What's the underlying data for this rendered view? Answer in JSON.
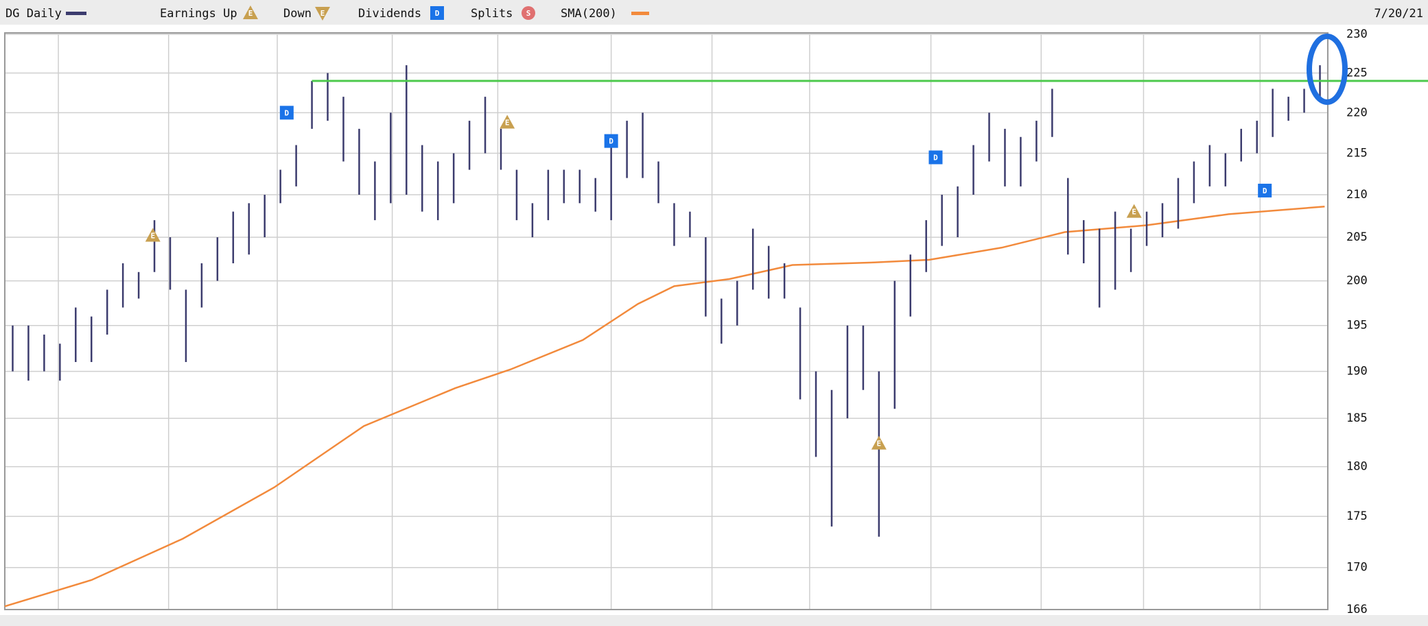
{
  "chart_data": {
    "type": "ohlc",
    "title": "DG Daily",
    "date_label": "7/20/21",
    "log_scale": true,
    "grid": true,
    "xlim": [
      0,
      84
    ],
    "xticks": [
      3.4,
      10.4,
      17.3,
      24.6,
      31.3,
      38.5,
      44.9,
      51.1,
      58.8,
      65.8,
      72.3,
      79.7
    ],
    "ylim": [
      166,
      230
    ],
    "yticks": [
      166,
      170,
      175,
      180,
      185,
      190,
      195,
      200,
      205,
      210,
      215,
      220,
      225,
      230
    ],
    "series": [
      {
        "name": "DG Daily",
        "color": "#3c3c6e",
        "high": [
          195,
          195,
          194,
          193,
          197,
          196,
          199,
          202,
          201,
          207,
          205,
          199,
          202,
          205,
          208,
          209,
          210,
          213,
          216,
          224,
          225,
          222,
          218,
          214,
          220,
          226,
          216,
          214,
          215,
          219,
          222,
          218,
          213,
          209,
          213,
          213,
          213,
          212,
          217,
          219,
          220,
          214,
          209,
          208,
          205,
          198,
          200,
          206,
          204,
          202,
          197,
          190,
          188,
          195,
          195,
          190,
          200,
          203,
          207,
          210,
          211,
          216,
          220,
          218,
          217,
          219,
          223,
          212,
          207,
          206,
          208,
          206,
          208,
          209,
          212,
          214,
          216,
          215,
          218,
          219,
          223,
          222,
          223,
          226
        ],
        "low": [
          190,
          189,
          190,
          189,
          191,
          191,
          194,
          197,
          198,
          201,
          199,
          191,
          197,
          200,
          202,
          203,
          205,
          209,
          211,
          218,
          219,
          214,
          210,
          207,
          209,
          210,
          208,
          207,
          209,
          213,
          215,
          213,
          207,
          205,
          207,
          209,
          209,
          208,
          207,
          212,
          212,
          209,
          204,
          205,
          196,
          193,
          195,
          199,
          198,
          198,
          187,
          181,
          174,
          185,
          188,
          173,
          186,
          196,
          201,
          204,
          205,
          210,
          214,
          211,
          211,
          214,
          217,
          203,
          202,
          197,
          199,
          201,
          204,
          205,
          206,
          209,
          211,
          211,
          214,
          215,
          217,
          219,
          220,
          222
        ]
      },
      {
        "name": "SMA(200)",
        "color": "#f28a3c",
        "x": [
          0,
          5.5,
          11.3,
          17.1,
          22.8,
          28.6,
          32.1,
          36.7,
          40.2,
          42.5,
          46,
          50,
          55.2,
          58.7,
          63.3,
          67.3,
          72.5,
          77.7,
          83.8
        ],
        "values": [
          166.3,
          168.8,
          172.8,
          177.9,
          184.2,
          188.2,
          190.2,
          193.4,
          197.4,
          199.4,
          200.2,
          201.8,
          202.1,
          202.4,
          203.8,
          205.6,
          206.4,
          207.7,
          208.6
        ]
      }
    ],
    "events": [
      {
        "name": "Earnings Up",
        "shape": "up",
        "color": "#c8a050",
        "icon": "E",
        "x": [
          9.4,
          31.9,
          55.5,
          71.7
        ],
        "y": [
          205.2,
          218.8,
          182.4,
          208
        ]
      },
      {
        "name": "Down",
        "shape": "down",
        "color": "#c8a050",
        "icon": "E",
        "x": [],
        "y": []
      },
      {
        "name": "Dividends",
        "shape": "square",
        "color": "#1a73e8",
        "icon": "D",
        "x": [
          17.9,
          38.5,
          59.1,
          80
        ],
        "y": [
          220,
          216.5,
          214.5,
          210.5
        ]
      },
      {
        "name": "Splits",
        "shape": "circle",
        "color": "#e07070",
        "icon": "S",
        "x": [],
        "y": []
      }
    ],
    "reference_line": {
      "value": 224,
      "x_start": 19.5,
      "color": "#4cc94c"
    }
  }
}
